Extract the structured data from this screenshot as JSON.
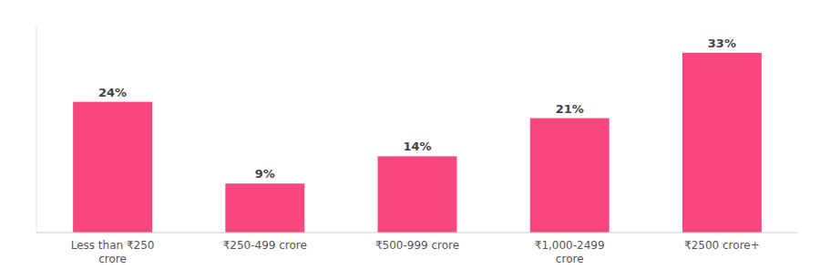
{
  "chart_data": {
    "type": "bar",
    "categories": [
      "Less than ₹250\ncrore",
      "₹250-499 crore",
      "₹500-999 crore",
      "₹1,000-2499\ncrore",
      "₹2500 crore+"
    ],
    "values": [
      24,
      9,
      14,
      21,
      33
    ],
    "value_labels": [
      "24%",
      "9%",
      "14%",
      "21%",
      "33%"
    ],
    "data_labels": true,
    "color": "#F94880",
    "ylim": [
      0,
      38
    ],
    "grid": false,
    "tick_labels": "x"
  }
}
